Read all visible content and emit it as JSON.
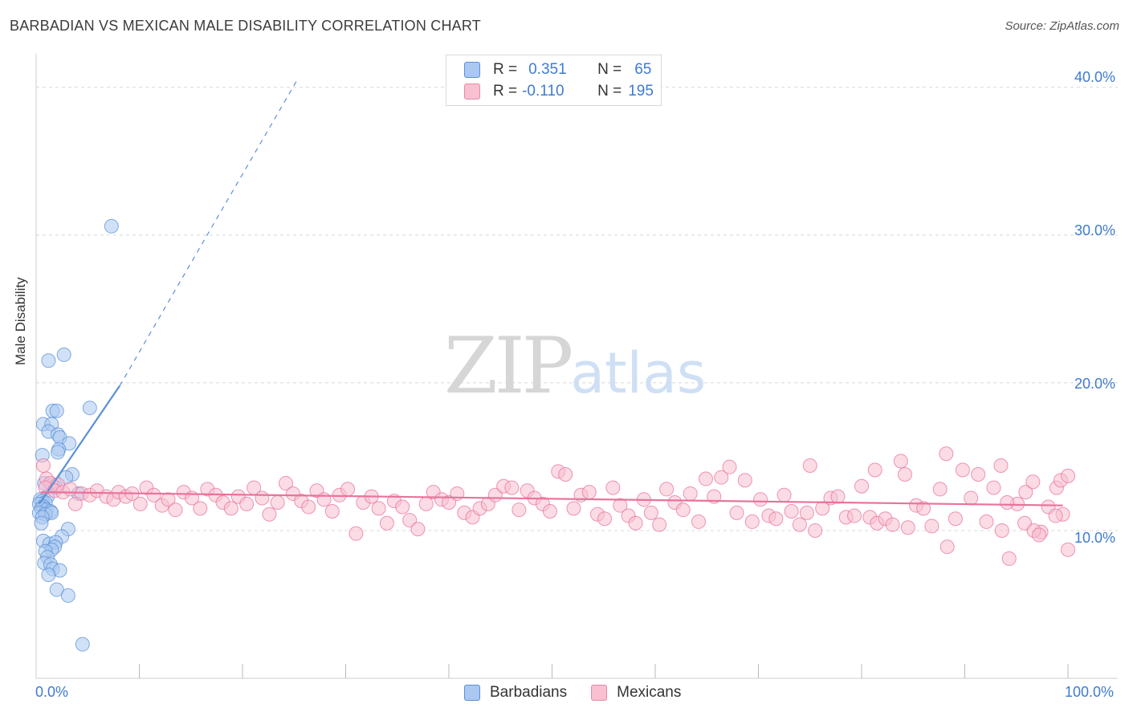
{
  "title": "BARBADIAN VS MEXICAN MALE DISABILITY CORRELATION CHART",
  "source": "Source: ZipAtlas.com",
  "watermark": {
    "zip": "ZIP",
    "atlas": "atlas"
  },
  "legend_top": {
    "rows": [
      {
        "r_label": "R =",
        "r_value": "0.351",
        "n_label": "N =",
        "n_value": "65",
        "color": "#aac8f0",
        "border": "#5b8fd6"
      },
      {
        "r_label": "R =",
        "r_value": "-0.110",
        "n_label": "N =",
        "n_value": "195",
        "color": "#f8c0d0",
        "border": "#e58aa8"
      }
    ]
  },
  "legend_bottom": {
    "items": [
      {
        "label": "Barbadians",
        "color": "#aac8f0",
        "border": "#5b8fd6"
      },
      {
        "label": "Mexicans",
        "color": "#f8c0d0",
        "border": "#e58aa8"
      }
    ]
  },
  "chart_data": {
    "type": "scatter",
    "title": "BARBADIAN VS MEXICAN MALE DISABILITY CORRELATION CHART",
    "xlabel": "",
    "ylabel": "Male Disability",
    "xlim": [
      0,
      100
    ],
    "ylim": [
      0,
      42
    ],
    "x_tick_labels": [
      "0.0%",
      "100.0%"
    ],
    "y_ticks": [
      10,
      20,
      30,
      40
    ],
    "y_tick_labels": [
      "10.0%",
      "20.0%",
      "30.0%",
      "40.0%"
    ],
    "grid": true,
    "series": [
      {
        "name": "Barbadians",
        "color": "#5b8fd6",
        "fill": "#aac8f0",
        "R": 0.351,
        "N": 65,
        "trend": {
          "x": [
            0.3,
            8.1
          ],
          "y": [
            11.8,
            19.8
          ]
        },
        "trend_dashed": {
          "x": [
            8.1,
            25.3
          ],
          "y": [
            19.8,
            40.5
          ]
        },
        "points": [
          [
            7.3,
            30.6
          ],
          [
            1.2,
            21.5
          ],
          [
            2.7,
            21.9
          ],
          [
            1.6,
            18.1
          ],
          [
            2.0,
            18.1
          ],
          [
            5.2,
            18.3
          ],
          [
            0.7,
            17.2
          ],
          [
            1.5,
            17.2
          ],
          [
            1.2,
            16.7
          ],
          [
            2.1,
            16.5
          ],
          [
            2.3,
            16.3
          ],
          [
            3.2,
            15.9
          ],
          [
            2.2,
            15.5
          ],
          [
            2.1,
            15.3
          ],
          [
            0.6,
            15.1
          ],
          [
            3.5,
            13.8
          ],
          [
            2.9,
            13.6
          ],
          [
            0.8,
            13.2
          ],
          [
            1.6,
            13.1
          ],
          [
            1.9,
            12.9
          ],
          [
            4.1,
            12.5
          ],
          [
            1.1,
            12.3
          ],
          [
            0.4,
            12.1
          ],
          [
            0.6,
            12.0
          ],
          [
            0.9,
            11.9
          ],
          [
            0.3,
            11.8
          ],
          [
            0.7,
            11.6
          ],
          [
            0.5,
            11.5
          ],
          [
            1.0,
            11.4
          ],
          [
            1.4,
            11.3
          ],
          [
            0.3,
            11.2
          ],
          [
            0.9,
            11.1
          ],
          [
            1.5,
            11.2
          ],
          [
            0.6,
            10.9
          ],
          [
            0.5,
            10.5
          ],
          [
            3.1,
            10.1
          ],
          [
            2.5,
            9.6
          ],
          [
            0.7,
            9.3
          ],
          [
            1.3,
            9.1
          ],
          [
            1.9,
            9.2
          ],
          [
            1.8,
            8.9
          ],
          [
            1.5,
            8.7
          ],
          [
            0.9,
            8.6
          ],
          [
            1.1,
            8.2
          ],
          [
            0.8,
            7.8
          ],
          [
            1.4,
            7.7
          ],
          [
            1.6,
            7.4
          ],
          [
            2.3,
            7.3
          ],
          [
            1.2,
            7.0
          ],
          [
            2.0,
            6.0
          ],
          [
            3.1,
            5.6
          ],
          [
            4.5,
            2.3
          ]
        ]
      },
      {
        "name": "Mexicans",
        "color": "#e8739c",
        "fill": "#f8c0d0",
        "R": -0.11,
        "N": 195,
        "trend": {
          "x": [
            0.5,
            99.5
          ],
          "y": [
            12.6,
            11.7
          ]
        },
        "points": [
          [
            0.7,
            14.4
          ],
          [
            1.0,
            13.5
          ],
          [
            1.4,
            13.2
          ],
          [
            0.9,
            12.9
          ],
          [
            2.1,
            13.1
          ],
          [
            1.8,
            12.7
          ],
          [
            2.6,
            12.6
          ],
          [
            3.3,
            12.8
          ],
          [
            4.4,
            12.5
          ],
          [
            5.2,
            12.4
          ],
          [
            5.9,
            12.7
          ],
          [
            3.8,
            11.8
          ],
          [
            6.8,
            12.3
          ],
          [
            7.5,
            12.1
          ],
          [
            8.0,
            12.6
          ],
          [
            8.7,
            12.3
          ],
          [
            9.3,
            12.5
          ],
          [
            10.1,
            11.8
          ],
          [
            10.7,
            12.9
          ],
          [
            11.4,
            12.4
          ],
          [
            12.2,
            11.7
          ],
          [
            12.8,
            12.1
          ],
          [
            13.5,
            11.4
          ],
          [
            14.3,
            12.6
          ],
          [
            15.1,
            12.2
          ],
          [
            15.9,
            11.5
          ],
          [
            16.6,
            12.8
          ],
          [
            17.4,
            12.4
          ],
          [
            18.1,
            11.9
          ],
          [
            18.9,
            11.5
          ],
          [
            19.6,
            12.3
          ],
          [
            20.4,
            11.8
          ],
          [
            21.1,
            12.9
          ],
          [
            21.9,
            12.2
          ],
          [
            22.6,
            11.1
          ],
          [
            23.4,
            11.9
          ],
          [
            24.2,
            13.2
          ],
          [
            24.9,
            12.5
          ],
          [
            25.7,
            12.0
          ],
          [
            26.4,
            11.6
          ],
          [
            27.2,
            12.7
          ],
          [
            27.9,
            12.1
          ],
          [
            28.7,
            11.3
          ],
          [
            29.4,
            12.4
          ],
          [
            30.2,
            12.8
          ],
          [
            31.0,
            9.8
          ],
          [
            31.7,
            11.9
          ],
          [
            32.5,
            12.3
          ],
          [
            33.2,
            11.5
          ],
          [
            34.0,
            10.5
          ],
          [
            34.7,
            12.0
          ],
          [
            35.5,
            11.6
          ],
          [
            36.2,
            10.7
          ],
          [
            37.0,
            10.1
          ],
          [
            37.8,
            11.8
          ],
          [
            38.5,
            12.6
          ],
          [
            39.3,
            12.1
          ],
          [
            40.0,
            11.9
          ],
          [
            40.8,
            12.5
          ],
          [
            41.5,
            11.2
          ],
          [
            42.3,
            10.9
          ],
          [
            43.0,
            11.5
          ],
          [
            43.8,
            11.8
          ],
          [
            44.5,
            12.4
          ],
          [
            45.3,
            13.0
          ],
          [
            46.1,
            12.9
          ],
          [
            46.8,
            11.4
          ],
          [
            47.6,
            12.7
          ],
          [
            48.3,
            12.2
          ],
          [
            49.1,
            11.8
          ],
          [
            49.8,
            11.3
          ],
          [
            50.6,
            14.0
          ],
          [
            51.3,
            13.8
          ],
          [
            52.1,
            11.5
          ],
          [
            52.8,
            12.4
          ],
          [
            53.6,
            12.6
          ],
          [
            54.4,
            11.1
          ],
          [
            55.1,
            10.8
          ],
          [
            55.9,
            12.9
          ],
          [
            56.6,
            11.7
          ],
          [
            57.4,
            11.0
          ],
          [
            58.1,
            10.5
          ],
          [
            58.9,
            12.1
          ],
          [
            59.6,
            11.2
          ],
          [
            60.4,
            10.4
          ],
          [
            61.1,
            12.8
          ],
          [
            61.9,
            11.9
          ],
          [
            62.7,
            11.4
          ],
          [
            63.4,
            12.5
          ],
          [
            64.2,
            10.6
          ],
          [
            64.9,
            13.5
          ],
          [
            65.7,
            12.3
          ],
          [
            66.4,
            13.6
          ],
          [
            67.2,
            14.3
          ],
          [
            67.9,
            11.2
          ],
          [
            68.7,
            13.4
          ],
          [
            69.4,
            10.6
          ],
          [
            70.2,
            12.1
          ],
          [
            71.0,
            11.0
          ],
          [
            71.7,
            10.8
          ],
          [
            72.5,
            12.4
          ],
          [
            73.2,
            11.3
          ],
          [
            74.0,
            10.4
          ],
          [
            74.7,
            11.2
          ],
          [
            75.5,
            10.0
          ],
          [
            76.2,
            11.5
          ],
          [
            77.0,
            12.2
          ],
          [
            77.7,
            12.3
          ],
          [
            78.5,
            10.9
          ],
          [
            79.3,
            11.0
          ],
          [
            80.0,
            13.0
          ],
          [
            80.8,
            10.9
          ],
          [
            81.5,
            10.5
          ],
          [
            82.3,
            10.8
          ],
          [
            83.0,
            10.4
          ],
          [
            83.8,
            14.7
          ],
          [
            84.5,
            10.2
          ],
          [
            85.3,
            11.7
          ],
          [
            86.0,
            11.5
          ],
          [
            86.8,
            10.3
          ],
          [
            87.6,
            12.8
          ],
          [
            88.3,
            8.9
          ],
          [
            89.1,
            10.8
          ],
          [
            89.8,
            14.1
          ],
          [
            90.6,
            12.2
          ],
          [
            91.3,
            13.8
          ],
          [
            92.1,
            10.6
          ],
          [
            92.8,
            12.9
          ],
          [
            93.6,
            10.0
          ],
          [
            94.3,
            8.1
          ],
          [
            95.1,
            11.8
          ],
          [
            95.9,
            12.6
          ],
          [
            96.6,
            13.3
          ],
          [
            97.4,
            9.9
          ],
          [
            98.1,
            11.6
          ],
          [
            98.9,
            12.9
          ],
          [
            99.5,
            11.1
          ],
          [
            75.0,
            14.4
          ],
          [
            81.3,
            14.1
          ],
          [
            84.2,
            13.8
          ],
          [
            88.2,
            15.2
          ],
          [
            93.5,
            14.4
          ],
          [
            94.1,
            11.9
          ],
          [
            95.8,
            10.5
          ],
          [
            96.7,
            10.0
          ],
          [
            97.2,
            9.7
          ],
          [
            98.8,
            11.0
          ],
          [
            99.3,
            13.4
          ],
          [
            100.0,
            13.7
          ],
          [
            100.0,
            8.7
          ]
        ]
      }
    ]
  }
}
